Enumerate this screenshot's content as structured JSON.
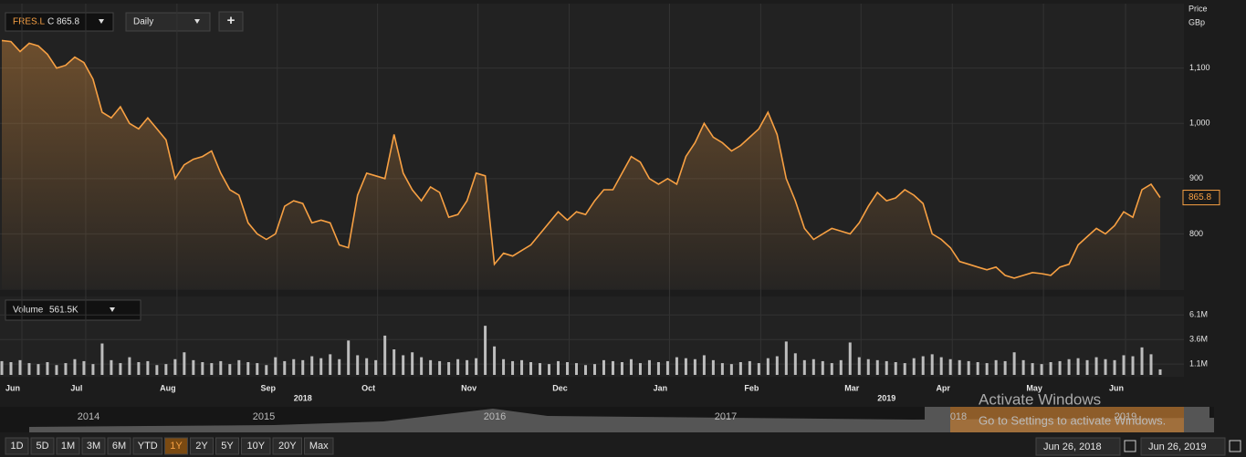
{
  "toolbar": {
    "symbol": "FRES.L",
    "close": "C 865.8",
    "interval": "Daily",
    "add": "+"
  },
  "chart_data": [
    {
      "type": "line",
      "name": "Price",
      "unit": "GBp",
      "color": "#f7a043",
      "last_label": "865.8",
      "values": [
        1150,
        1148,
        1130,
        1145,
        1140,
        1125,
        1100,
        1105,
        1120,
        1110,
        1080,
        1020,
        1010,
        1030,
        1000,
        990,
        1010,
        990,
        970,
        900,
        925,
        935,
        940,
        950,
        910,
        880,
        870,
        820,
        800,
        790,
        800,
        850,
        860,
        855,
        820,
        825,
        820,
        780,
        775,
        870,
        910,
        905,
        900,
        980,
        910,
        880,
        860,
        885,
        875,
        830,
        835,
        860,
        910,
        905,
        745,
        765,
        760,
        770,
        780,
        800,
        820,
        840,
        825,
        840,
        835,
        860,
        880,
        880,
        910,
        940,
        930,
        900,
        890,
        900,
        890,
        940,
        965,
        1000,
        975,
        965,
        950,
        960,
        975,
        990,
        1020,
        980,
        900,
        860,
        810,
        790,
        800,
        810,
        805,
        800,
        820,
        850,
        875,
        860,
        865,
        880,
        870,
        855,
        800,
        790,
        775,
        750,
        745,
        740,
        735,
        740,
        725,
        720,
        725,
        730,
        728,
        725,
        740,
        745,
        780,
        795,
        810,
        800,
        815,
        840,
        830,
        880,
        890,
        865.8
      ],
      "xlim": [
        0,
        127
      ],
      "xticks": [
        {
          "value": 1,
          "label": "Jun"
        },
        {
          "value": 8,
          "label": "Jul"
        },
        {
          "value": 18,
          "label": "Aug"
        },
        {
          "value": 29,
          "label": "Sep"
        },
        {
          "value": 40,
          "label": "Oct"
        },
        {
          "value": 51,
          "label": "Nov"
        },
        {
          "value": 61,
          "label": "Dec"
        },
        {
          "value": 72,
          "label": "Jan"
        },
        {
          "value": 82,
          "label": "Feb"
        },
        {
          "value": 93,
          "label": "Mar"
        },
        {
          "value": 103,
          "label": "Apr"
        },
        {
          "value": 113,
          "label": "May"
        },
        {
          "value": 122,
          "label": "Jun"
        }
      ],
      "year_labels": [
        {
          "value": 33,
          "label": "2018"
        },
        {
          "value": 97,
          "label": "2019"
        }
      ],
      "ylim": [
        700,
        1215
      ],
      "yticks": [
        800,
        900,
        {
          "value": 1000,
          "label": "1,000"
        },
        {
          "value": 1100,
          "label": "1,100"
        }
      ],
      "grid": true
    },
    {
      "type": "bar",
      "name": "Volume",
      "color": "#bdbdbd",
      "last_label": "561.5K",
      "values": [
        1400000,
        1300000,
        1500000,
        1200000,
        1100000,
        1300000,
        1000000,
        1200000,
        1600000,
        1400000,
        1100000,
        3200000,
        1500000,
        1200000,
        1800000,
        1300000,
        1400000,
        1000000,
        1100000,
        1600000,
        2300000,
        1500000,
        1300000,
        1200000,
        1400000,
        1100000,
        1500000,
        1300000,
        1200000,
        1000000,
        1800000,
        1400000,
        1600000,
        1500000,
        1900000,
        1700000,
        2100000,
        1600000,
        3500000,
        2000000,
        1700000,
        1500000,
        4000000,
        2600000,
        2000000,
        2300000,
        1800000,
        1500000,
        1400000,
        1300000,
        1600000,
        1500000,
        1700000,
        5000000,
        2900000,
        1600000,
        1400000,
        1500000,
        1300000,
        1200000,
        1100000,
        1400000,
        1300000,
        1200000,
        1000000,
        1100000,
        1500000,
        1400000,
        1300000,
        1600000,
        1200000,
        1500000,
        1300000,
        1400000,
        1800000,
        1700000,
        1600000,
        2000000,
        1500000,
        1200000,
        1100000,
        1300000,
        1400000,
        1200000,
        1700000,
        1900000,
        3400000,
        2200000,
        1500000,
        1600000,
        1400000,
        1200000,
        1500000,
        3300000,
        1800000,
        1600000,
        1500000,
        1400000,
        1300000,
        1200000,
        1700000,
        1900000,
        2100000,
        1800000,
        1600000,
        1500000,
        1400000,
        1300000,
        1200000,
        1500000,
        1400000,
        2300000,
        1500000,
        1200000,
        1100000,
        1300000,
        1400000,
        1600000,
        1700000,
        1500000,
        1800000,
        1600000,
        1500000,
        2000000,
        1900000,
        2800000,
        2100000,
        561500
      ],
      "ylim": [
        0,
        7800000
      ],
      "yticks": [
        {
          "value": 1100000,
          "label": "1.1M"
        },
        {
          "value": 3600000,
          "label": "3.6M"
        },
        {
          "value": 6100000,
          "label": "6.1M"
        }
      ]
    }
  ],
  "navigator": {
    "years": [
      "2014",
      "2015",
      "2016",
      "2017",
      "018",
      "2019"
    ]
  },
  "range_buttons": [
    "1D",
    "5D",
    "1M",
    "3M",
    "6M",
    "YTD",
    "1Y",
    "2Y",
    "5Y",
    "10Y",
    "20Y",
    "Max"
  ],
  "date_range": {
    "from": "Jun 26, 2018",
    "to": "Jun 26, 2019"
  },
  "watermark": {
    "title": "Activate Windows",
    "text": "Go to Settings to activate Windows."
  }
}
